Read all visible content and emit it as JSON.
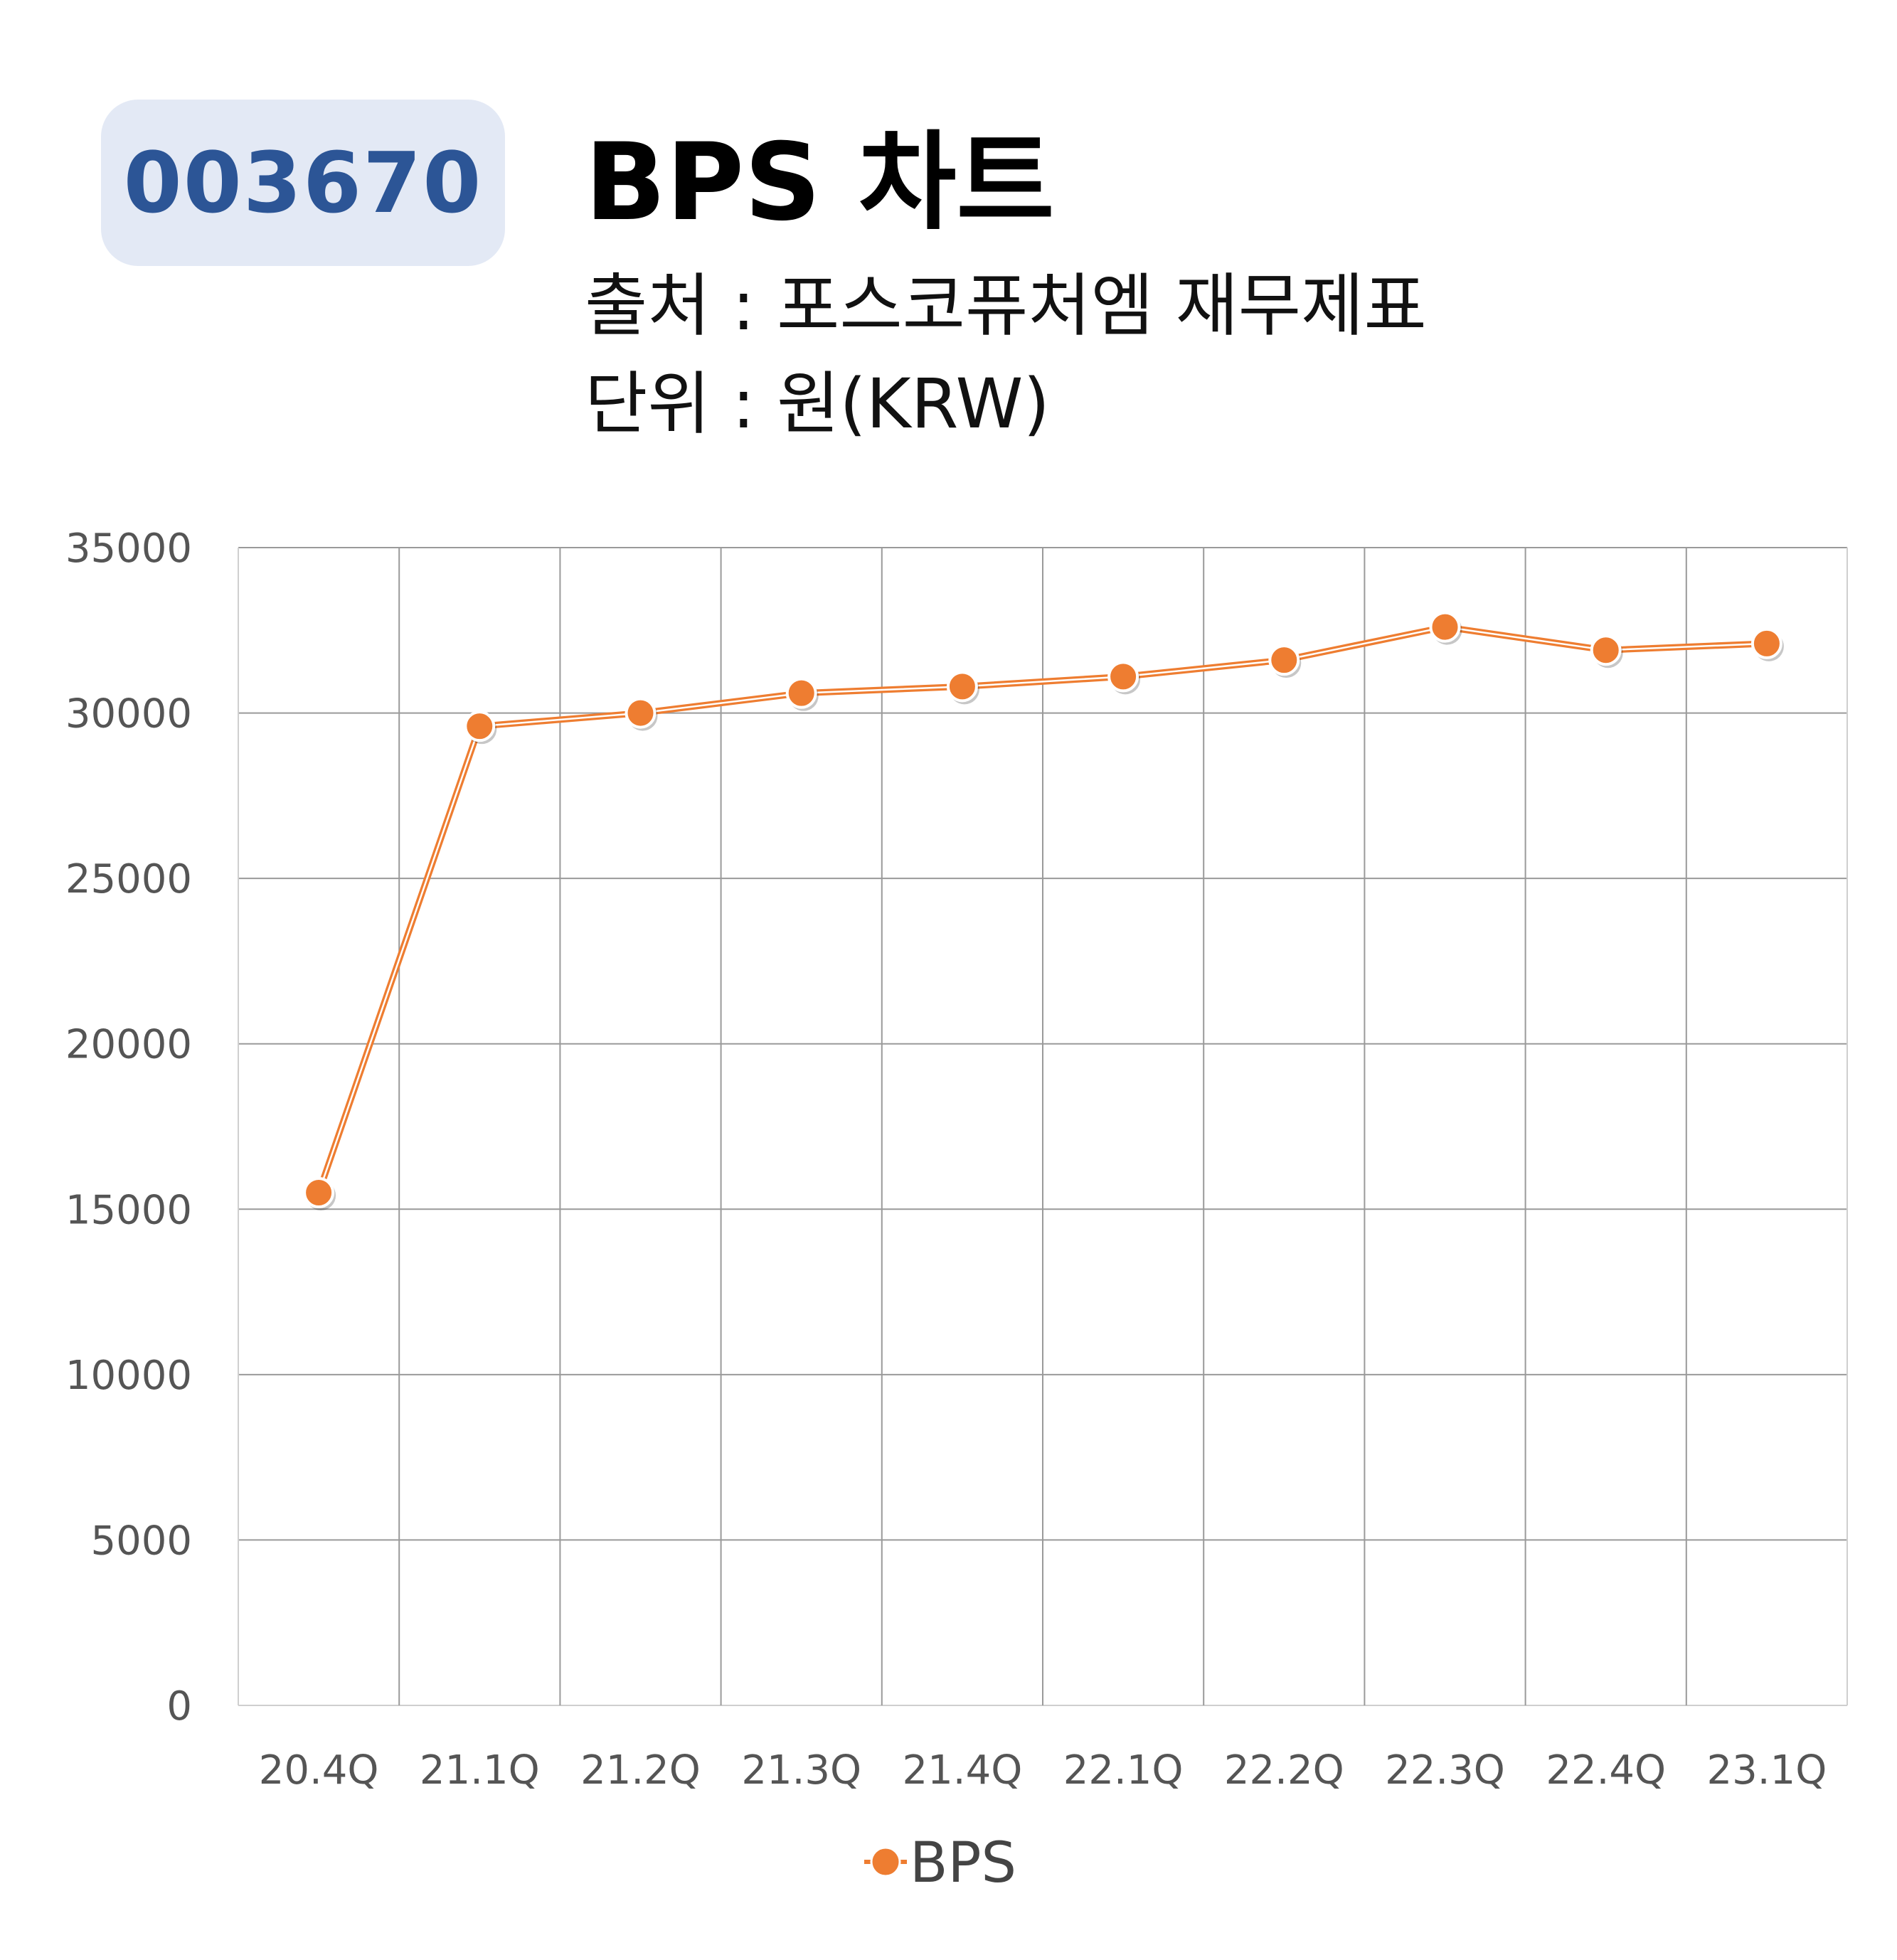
{
  "header": {
    "code": "003670",
    "title": "BPS 차트",
    "source": "출처 : 포스코퓨처엠 재무제표",
    "unit": "단위 : 원(KRW)"
  },
  "colors": {
    "badge_bg": "#e3e9f5",
    "badge_text": "#2c5596",
    "series": "#ee7d31",
    "grid": "#9a9a9a"
  },
  "chart_data": {
    "type": "line",
    "title": "BPS 차트",
    "xlabel": "",
    "ylabel": "",
    "categories": [
      "20.4Q",
      "21.1Q",
      "21.2Q",
      "21.3Q",
      "21.4Q",
      "22.1Q",
      "22.2Q",
      "22.3Q",
      "22.4Q",
      "23.1Q"
    ],
    "series": [
      {
        "name": "BPS",
        "values": [
          15500,
          29600,
          30000,
          30600,
          30800,
          31100,
          31600,
          32600,
          31900,
          32100
        ]
      }
    ],
    "ylim": [
      0,
      35000
    ],
    "yticks": [
      "0",
      "5000",
      "10000",
      "15000",
      "20000",
      "25000",
      "30000",
      "35000"
    ],
    "grid": true,
    "legend_position": "bottom"
  }
}
